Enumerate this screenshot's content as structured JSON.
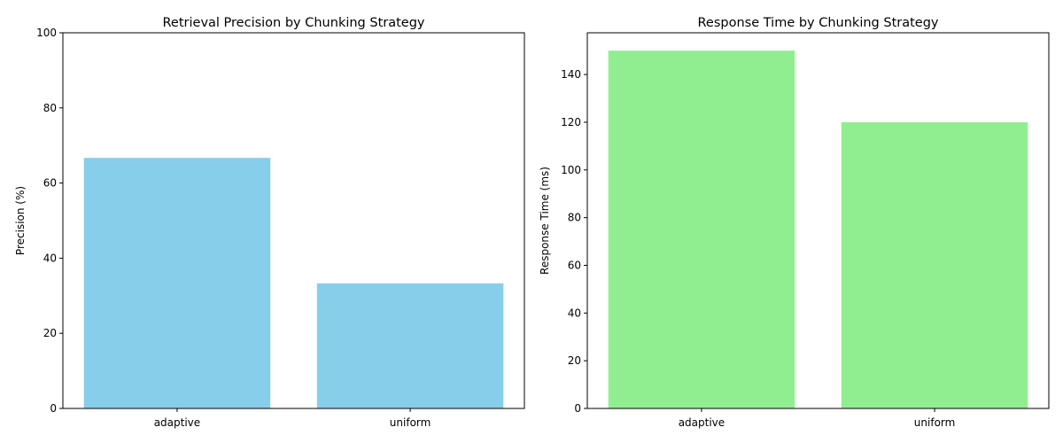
{
  "chart_data": [
    {
      "type": "bar",
      "title": "Retrieval Precision by Chunking Strategy",
      "xlabel": "",
      "ylabel": "Precision (%)",
      "categories": [
        "adaptive",
        "uniform"
      ],
      "values": [
        66.7,
        33.3
      ],
      "ylim": [
        0,
        100
      ],
      "yticks": [
        0,
        20,
        40,
        60,
        80,
        100
      ],
      "color": "#87CEEB",
      "grid": false,
      "legend": false
    },
    {
      "type": "bar",
      "title": "Response Time by Chunking Strategy",
      "xlabel": "",
      "ylabel": "Response Time (ms)",
      "categories": [
        "adaptive",
        "uniform"
      ],
      "values": [
        150,
        120
      ],
      "ylim": [
        0,
        157.5
      ],
      "yticks": [
        0,
        20,
        40,
        60,
        80,
        100,
        120,
        140
      ],
      "color": "#90EE90",
      "grid": false,
      "legend": false
    }
  ]
}
